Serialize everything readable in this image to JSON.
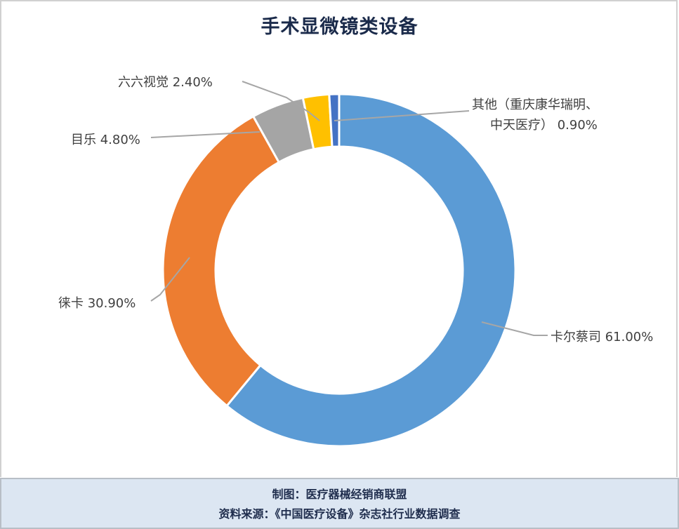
{
  "chart_data": {
    "type": "pie",
    "variant": "donut",
    "title": "手术显微镜类设备",
    "categories": [
      "卡尔蔡司",
      "徕卡",
      "目乐",
      "六六视觉",
      "其他（重庆康华瑞明、中天医疗）"
    ],
    "values": [
      61.0,
      30.9,
      4.8,
      2.4,
      0.9
    ],
    "unit": "%",
    "colors": [
      "#5b9bd5",
      "#ed7d31",
      "#a5a5a5",
      "#ffc000",
      "#4472c4"
    ],
    "data_labels": [
      "卡尔蔡司 61.00%",
      "徕卡 30.90%",
      "目乐 4.80%",
      "六六视觉 2.40%",
      "其他（重庆康华瑞明、中天医疗） 0.90%"
    ],
    "legend": "none",
    "start_angle": "12 o'clock, clockwise"
  },
  "labels": {
    "zeiss": "卡尔蔡司 61.00%",
    "leica": "徕卡 30.90%",
    "mule": "目乐 4.80%",
    "liuliu": "六六视觉 2.40%",
    "other_line1": "其他（重庆康华瑞明、",
    "other_line2": "中天医疗） 0.90%"
  },
  "footer": {
    "credit": "制图：医疗器械经销商联盟",
    "source": "资料来源：《中国医疗设备》杂志社行业数据调查"
  }
}
